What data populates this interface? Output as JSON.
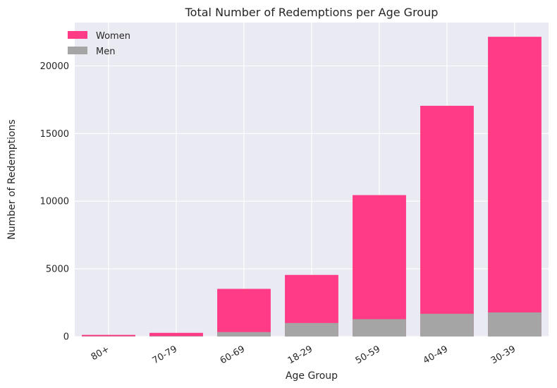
{
  "chart_data": {
    "type": "bar",
    "stacked": false,
    "title": "Total Number of Redemptions per Age Group",
    "xlabel": "Age Group",
    "ylabel": "Number of Redemptions",
    "categories": [
      "80+",
      "70-79",
      "60-69",
      "18-29",
      "50-59",
      "40-49",
      "30-39"
    ],
    "series": [
      {
        "name": "Women",
        "color": "#ff3b86",
        "values": [
          120,
          270,
          3520,
          4550,
          10450,
          17050,
          22150
        ]
      },
      {
        "name": "Men",
        "color": "#a5a5a5",
        "values": [
          20,
          30,
          330,
          1000,
          1280,
          1680,
          1780
        ]
      }
    ],
    "y_ticks": [
      "0",
      "5000",
      "10000",
      "15000",
      "20000"
    ],
    "ylim": [
      0,
      23200
    ],
    "grid": true,
    "legend_position": "top-left",
    "background_color": "#eaeaf2",
    "grid_color": "#ffffff"
  }
}
